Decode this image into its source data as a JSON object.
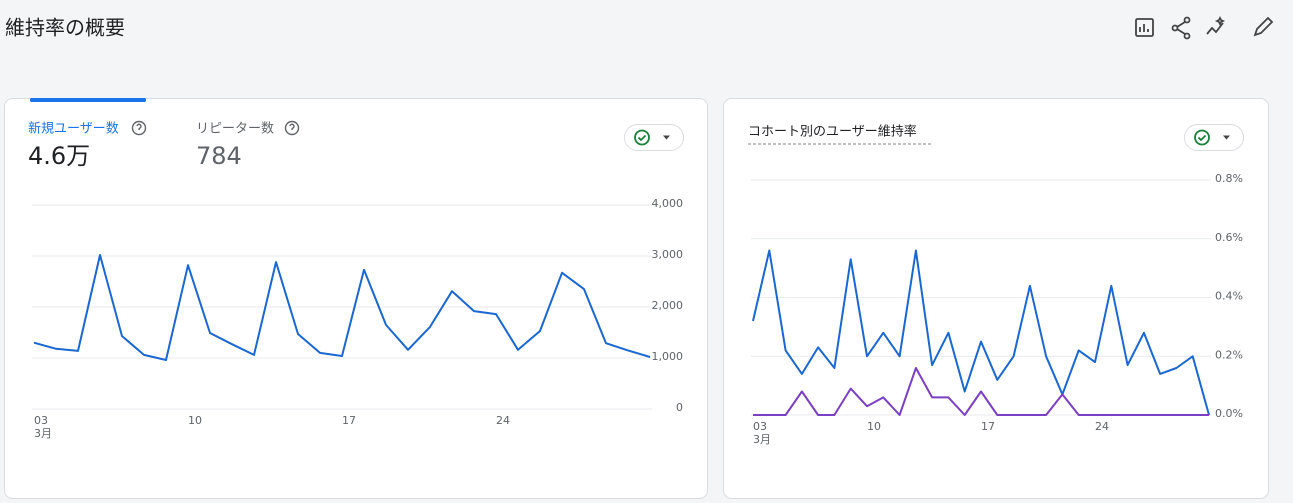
{
  "page_title": "維持率の概要",
  "chart_data": [
    {
      "type": "line",
      "metrics": [
        {
          "label": "新規ユーザー数",
          "value": "4.6万"
        },
        {
          "label": "リピーター数",
          "value": "784"
        }
      ],
      "categories": [
        "03",
        null,
        null,
        null,
        null,
        null,
        null,
        "10",
        null,
        null,
        null,
        null,
        null,
        null,
        "17",
        null,
        null,
        null,
        null,
        null,
        null,
        "24",
        null,
        null,
        null,
        null,
        null,
        null,
        null
      ],
      "x_sublabel": "3月",
      "series": [
        {
          "color": "#1a67d2",
          "values": [
            1300,
            1180,
            1140,
            3020,
            1430,
            1060,
            960,
            2820,
            1490,
            1270,
            1060,
            2880,
            1470,
            1100,
            1040,
            2730,
            1650,
            1160,
            1610,
            2310,
            1920,
            1860,
            1160,
            1530,
            2670,
            2350,
            1290,
            1150,
            1020
          ]
        }
      ],
      "ylim": [
        0,
        4000
      ],
      "yticks": [
        0,
        {
          "value": 1000,
          "label": "1,000"
        },
        {
          "value": 2000,
          "label": "2,000"
        },
        {
          "value": 3000,
          "label": "3,000"
        },
        {
          "value": 4000,
          "label": "4,000"
        }
      ],
      "grid": true
    },
    {
      "type": "line",
      "title": "コホート別のユーザー維持率",
      "categories": [
        "03",
        null,
        null,
        null,
        null,
        null,
        null,
        "10",
        null,
        null,
        null,
        null,
        null,
        null,
        "17",
        null,
        null,
        null,
        null,
        null,
        null,
        "24",
        null,
        null,
        null,
        null,
        null,
        null,
        null
      ],
      "x_sublabel": "3月",
      "series": [
        {
          "color": "#1a67d2",
          "values": [
            0.32,
            0.56,
            0.22,
            0.14,
            0.23,
            0.16,
            0.53,
            0.2,
            0.28,
            0.2,
            0.56,
            0.17,
            0.28,
            0.08,
            0.25,
            0.12,
            0.2,
            0.44,
            0.2,
            0.07,
            0.22,
            0.18,
            0.44,
            0.17,
            0.28,
            0.14,
            0.16,
            0.2,
            0
          ]
        },
        {
          "color": "#7b3fc4",
          "values": [
            0,
            0,
            0,
            0.08,
            0,
            0,
            0.09,
            0.03,
            0.06,
            0,
            0.16,
            0.06,
            0.06,
            0,
            0.08,
            0,
            0,
            0,
            0,
            0.07,
            0,
            0,
            0,
            0,
            0,
            0,
            0,
            0,
            0
          ]
        }
      ],
      "ylim": [
        0,
        0.8
      ],
      "yticks": [
        {
          "value": 0,
          "label": "0.0%"
        },
        {
          "value": 0.2,
          "label": "0.2%"
        },
        {
          "value": 0.4,
          "label": "0.4%"
        },
        {
          "value": 0.6,
          "label": "0.6%"
        },
        {
          "value": 0.8,
          "label": "0.8%"
        }
      ],
      "grid": true
    }
  ]
}
